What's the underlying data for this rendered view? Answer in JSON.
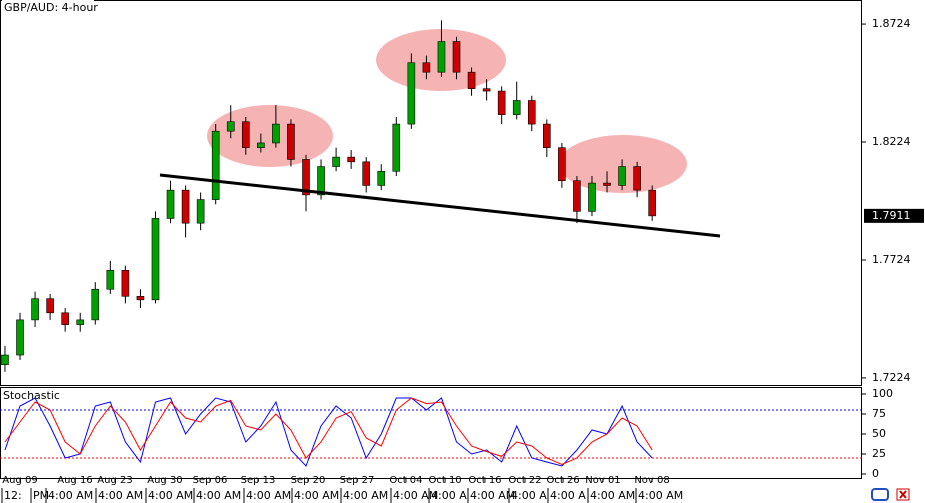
{
  "chart_data": [
    {
      "type": "candlestick",
      "title": "GBP/AUD: 4-hour",
      "open": [
        1.728,
        1.7321,
        1.747,
        1.756,
        1.75,
        1.745,
        1.747,
        1.76,
        1.768,
        1.757,
        1.7555,
        1.79,
        1.802,
        1.788,
        1.798,
        1.827,
        1.831,
        1.82,
        1.822,
        1.83,
        1.815,
        1.8,
        1.812,
        1.816,
        1.814,
        1.804,
        1.81,
        1.83,
        1.856,
        1.852,
        1.865,
        1.852,
        1.845,
        1.844,
        1.834,
        1.84,
        1.83,
        1.82,
        1.806,
        1.793,
        1.805,
        1.804,
        1.812,
        1.802
      ],
      "high": [
        1.736,
        1.75,
        1.759,
        1.758,
        1.752,
        1.75,
        1.763,
        1.772,
        1.77,
        1.76,
        1.793,
        1.806,
        1.804,
        1.801,
        1.83,
        1.838,
        1.833,
        1.826,
        1.838,
        1.832,
        1.817,
        1.815,
        1.82,
        1.819,
        1.816,
        1.813,
        1.833,
        1.86,
        1.859,
        1.874,
        1.867,
        1.854,
        1.849,
        1.846,
        1.848,
        1.842,
        1.832,
        1.822,
        1.808,
        1.808,
        1.81,
        1.815,
        1.814,
        1.804
      ],
      "low": [
        1.725,
        1.73,
        1.744,
        1.747,
        1.742,
        1.742,
        1.745,
        1.758,
        1.754,
        1.752,
        1.754,
        1.788,
        1.782,
        1.785,
        1.796,
        1.824,
        1.817,
        1.818,
        1.82,
        1.812,
        1.793,
        1.798,
        1.81,
        1.811,
        1.801,
        1.802,
        1.808,
        1.828,
        1.849,
        1.85,
        1.849,
        1.842,
        1.84,
        1.83,
        1.832,
        1.827,
        1.816,
        1.803,
        1.788,
        1.791,
        1.801,
        1.802,
        1.799,
        1.789
      ],
      "close": [
        1.7321,
        1.747,
        1.756,
        1.75,
        1.745,
        1.747,
        1.76,
        1.768,
        1.757,
        1.7555,
        1.79,
        1.802,
        1.788,
        1.798,
        1.827,
        1.831,
        1.82,
        1.822,
        1.83,
        1.815,
        1.8,
        1.812,
        1.816,
        1.814,
        1.804,
        1.81,
        1.83,
        1.856,
        1.852,
        1.865,
        1.852,
        1.845,
        1.844,
        1.834,
        1.84,
        1.83,
        1.82,
        1.806,
        1.793,
        1.805,
        1.804,
        1.812,
        1.802,
        1.7911
      ],
      "up_color": "#00a000",
      "down_color": "#cc0000",
      "xlim": [
        -0.33,
        56.94
      ],
      "ylim": [
        1.7194,
        1.8826
      ],
      "yticks": [
        1.8724,
        1.8224,
        1.7724,
        1.7224
      ],
      "xticks": [
        {
          "value": 1.0,
          "label": "Aug 09"
        },
        {
          "value": 4.65,
          "label": "Aug 16"
        },
        {
          "value": 7.31,
          "label": "Aug 23"
        },
        {
          "value": 10.63,
          "label": "Aug 30"
        },
        {
          "value": 13.62,
          "label": "Sep 06"
        },
        {
          "value": 16.81,
          "label": "Sep 13"
        },
        {
          "value": 20.13,
          "label": "Sep 20"
        },
        {
          "value": 23.39,
          "label": "Sep 27"
        },
        {
          "value": 26.64,
          "label": "Oct 04"
        },
        {
          "value": 29.24,
          "label": "Oct 10"
        },
        {
          "value": 31.89,
          "label": "Oct 16"
        },
        {
          "value": 34.55,
          "label": "Oct 22"
        },
        {
          "value": 37.08,
          "label": "Oct 26"
        },
        {
          "value": 39.73,
          "label": "Nov 01"
        },
        {
          "value": 42.99,
          "label": "Nov 08"
        }
      ]
    },
    {
      "type": "line",
      "title": "Stochastic",
      "series": [
        {
          "color": "#0000ff",
          "values": [
            30,
            85,
            95,
            60,
            20,
            25,
            85,
            90,
            40,
            15,
            90,
            95,
            50,
            75,
            95,
            90,
            40,
            60,
            90,
            30,
            10,
            60,
            85,
            70,
            20,
            50,
            95,
            95,
            80,
            95,
            40,
            25,
            30,
            15,
            60,
            20,
            15,
            10,
            30,
            55,
            50,
            85,
            40,
            20
          ]
        },
        {
          "color": "#ff0000",
          "values": [
            40,
            65,
            90,
            80,
            40,
            25,
            60,
            85,
            65,
            30,
            60,
            90,
            70,
            65,
            85,
            92,
            60,
            55,
            75,
            55,
            20,
            40,
            70,
            78,
            45,
            35,
            80,
            95,
            88,
            90,
            60,
            35,
            28,
            22,
            40,
            35,
            20,
            12,
            20,
            40,
            50,
            70,
            60,
            30
          ]
        }
      ],
      "levels": [
        {
          "value": 80,
          "color": "#0000ff"
        },
        {
          "value": 20,
          "color": "#ff0000"
        }
      ],
      "xlim": [
        -0.33,
        56.94
      ],
      "ylim": [
        -5,
        108.75
      ],
      "yticks": [
        100,
        75,
        50,
        25,
        0
      ]
    }
  ],
  "time_labels": [
    "12:",
    "PM",
    "4:00 AM",
    "4:00 AM",
    "4:00 AM",
    "4:00 AM",
    "4:00 AM",
    "4:00 AM",
    "4:00 AM",
    "4:00 AM",
    "4:00 A",
    "4:00 AM",
    "4:00 A",
    "4:00 A",
    "4:00 AM",
    "4:00 AM"
  ]
}
